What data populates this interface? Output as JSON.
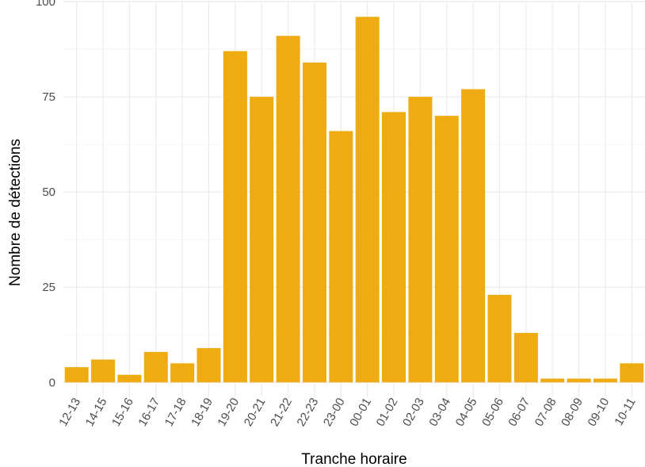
{
  "chart_data": {
    "type": "bar",
    "x_label": "Tranche horaire",
    "y_label": "Nombre de détections",
    "categories": [
      "12-13",
      "14-15",
      "15-16",
      "16-17",
      "17-18",
      "18-19",
      "19-20",
      "20-21",
      "21-22",
      "22-23",
      "23-00",
      "00-01",
      "01-02",
      "02-03",
      "03-04",
      "04-05",
      "05-06",
      "06-07",
      "07-08",
      "08-09",
      "09-10",
      "10-11"
    ],
    "values": [
      4,
      6,
      2,
      8,
      5,
      9,
      87,
      75,
      91,
      84,
      66,
      96,
      71,
      75,
      70,
      77,
      23,
      13,
      1,
      1,
      1,
      5
    ],
    "color": "#efac12",
    "ylim": [
      -4,
      100
    ],
    "yticks": [
      0,
      25,
      50,
      75,
      100
    ],
    "grid": true
  }
}
